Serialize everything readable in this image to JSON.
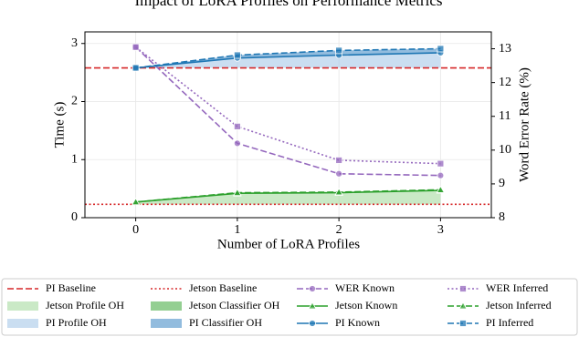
{
  "chart_data": {
    "type": "line",
    "title": "Impact of LoRA Profiles on Performance Metrics",
    "x_label": "Number of LoRA Profiles",
    "y_label": "Time (s)",
    "y2_label": "Word Error Rate (%)",
    "x": [
      0,
      1,
      2,
      3
    ],
    "xlim": [
      -0.5,
      3.5
    ],
    "xticks": [
      0,
      1,
      2,
      3
    ],
    "ylim": [
      0,
      3.2
    ],
    "yticks": [
      0,
      1,
      2,
      3
    ],
    "y2lim": [
      8,
      13.5
    ],
    "y2ticks": [
      8,
      9,
      10,
      11,
      12,
      13
    ],
    "grid": true,
    "legend": "bottom",
    "baselines": [
      {
        "name": "PI Baseline",
        "color": "#d62728",
        "dash": "dashed",
        "value": 2.58
      },
      {
        "name": "Jetson Baseline",
        "color": "#d62728",
        "dash": "dotted",
        "value": 0.23
      }
    ],
    "areas": [
      {
        "name": "Jetson Profile OH",
        "color": "#a6dba0"
      },
      {
        "name": "Jetson Classifier OH",
        "color": "#4daf4a"
      },
      {
        "name": "PI Profile OH",
        "color": "#a6c8e8"
      },
      {
        "name": "PI Classifier OH",
        "color": "#4a90c8"
      }
    ],
    "series": [
      {
        "name": "WER Known",
        "color": "#9467bd",
        "axis": "y2",
        "dash": "dashed",
        "marker": "circle",
        "values": [
          13.05,
          10.2,
          9.3,
          9.25
        ]
      },
      {
        "name": "WER Inferred",
        "color": "#9467bd",
        "axis": "y2",
        "dash": "dotted",
        "marker": "square",
        "values": [
          13.05,
          10.7,
          9.7,
          9.6
        ]
      },
      {
        "name": "Jetson Known",
        "color": "#2ca02c",
        "axis": "y",
        "dash": "solid",
        "marker": "triangle",
        "values": [
          0.27,
          0.42,
          0.43,
          0.47
        ]
      },
      {
        "name": "Jetson Inferred",
        "color": "#2ca02c",
        "axis": "y",
        "dash": "dashed",
        "marker": "triangle",
        "values": [
          0.27,
          0.43,
          0.44,
          0.48
        ]
      },
      {
        "name": "PI Known",
        "color": "#1f77b4",
        "axis": "y",
        "dash": "solid",
        "marker": "circle",
        "values": [
          2.58,
          2.75,
          2.8,
          2.84
        ]
      },
      {
        "name": "PI Inferred",
        "color": "#1f77b4",
        "axis": "y",
        "dash": "dashed",
        "marker": "square",
        "values": [
          2.58,
          2.8,
          2.88,
          2.91
        ]
      }
    ]
  }
}
